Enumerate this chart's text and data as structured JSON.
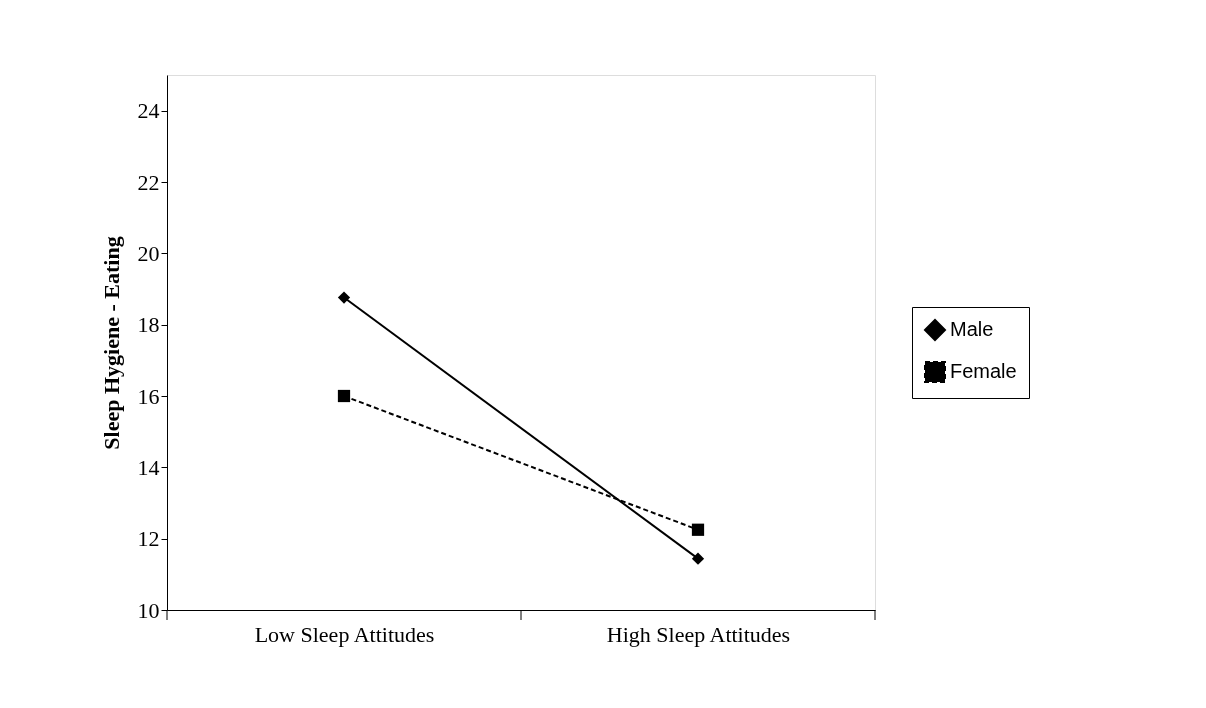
{
  "chart_data": {
    "type": "line",
    "ylabel": "Sleep Hygiene - Eating",
    "categories": [
      "Low Sleep Attitudes",
      "High Sleep Attitudes"
    ],
    "series": [
      {
        "name": "Male",
        "color": "#000000",
        "values": [
          18.76,
          11.44
        ],
        "marker": "diamond",
        "line_style": "solid"
      },
      {
        "name": "Female",
        "color": "#000000",
        "values": [
          16.0,
          12.25
        ],
        "marker": "square",
        "line_style": "dashed"
      }
    ],
    "ylim": [
      10,
      25
    ],
    "yticks": [
      10,
      12,
      14,
      16,
      18,
      20,
      22,
      24
    ],
    "grid": false,
    "legend": "right"
  }
}
